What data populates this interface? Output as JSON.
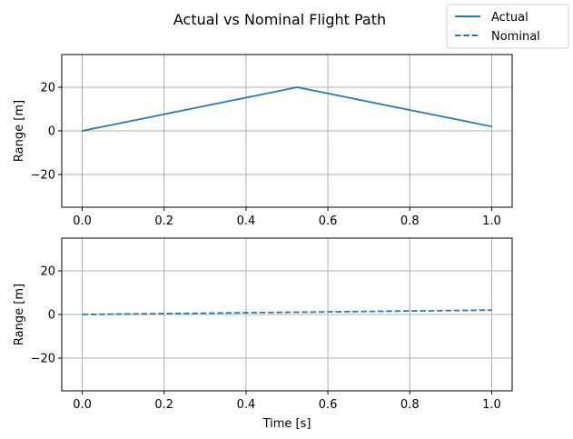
{
  "chart_data": [
    {
      "type": "line",
      "title": "Actual vs Nominal Flight Path",
      "xlabel": "",
      "ylabel": "Range [m]",
      "xlim": [
        -0.05,
        1.05
      ],
      "ylim": [
        -35,
        35
      ],
      "xticks": [
        "0.0",
        "0.2",
        "0.4",
        "0.6",
        "0.8",
        "1.0"
      ],
      "yticks": [
        "−20",
        "0",
        "20"
      ],
      "grid": true,
      "series": [
        {
          "name": "Actual",
          "style": "solid",
          "color": "#1f77b4",
          "x": [
            0,
            0.525,
            1.0
          ],
          "y": [
            0,
            20,
            2
          ]
        }
      ]
    },
    {
      "type": "line",
      "xlabel": "Time [s]",
      "ylabel": "Range [m]",
      "xlim": [
        -0.05,
        1.05
      ],
      "ylim": [
        -35,
        35
      ],
      "xticks": [
        "0.0",
        "0.2",
        "0.4",
        "0.6",
        "0.8",
        "1.0"
      ],
      "yticks": [
        "−20",
        "0",
        "20"
      ],
      "grid": true,
      "series": [
        {
          "name": "Nominal",
          "style": "dashed",
          "color": "#1f77b4",
          "x": [
            0,
            1.0
          ],
          "y": [
            0,
            2
          ]
        }
      ]
    }
  ],
  "legend": {
    "placement": "top-right",
    "entries": [
      {
        "label": "Actual",
        "style": "solid",
        "color": "#1f77b4"
      },
      {
        "label": "Nominal",
        "style": "dashed",
        "color": "#1f77b4"
      }
    ]
  }
}
